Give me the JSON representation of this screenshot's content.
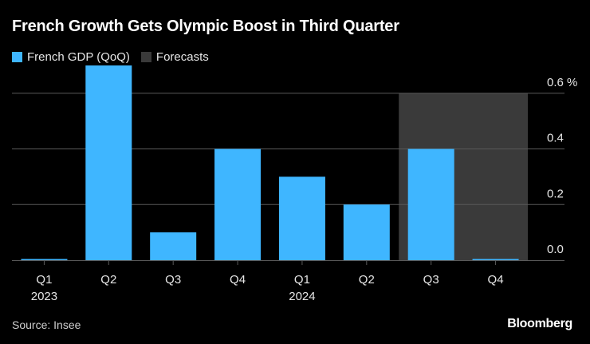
{
  "chart_data": {
    "type": "bar",
    "title": "French Growth Gets Olympic Boost in Third Quarter",
    "categories": [
      "Q1",
      "Q2",
      "Q3",
      "Q4",
      "Q1",
      "Q2",
      "Q3",
      "Q4"
    ],
    "year_labels": [
      "2023",
      "",
      "",
      "",
      "2024",
      "",
      "",
      ""
    ],
    "series": [
      {
        "name": "French GDP (QoQ)",
        "values": [
          0.0,
          0.7,
          0.1,
          0.4,
          0.3,
          0.2,
          0.4,
          0.0
        ]
      }
    ],
    "forecast_band": {
      "name": "Forecasts",
      "categories": [
        6,
        7
      ],
      "value": 0.6
    },
    "yticks": [
      {
        "value": 0.0,
        "label": "0.0"
      },
      {
        "value": 0.2,
        "label": "0.2"
      },
      {
        "value": 0.4,
        "label": "0.4"
      },
      {
        "value": 0.6,
        "label": "0.6 %"
      }
    ],
    "ylim": [
      0,
      0.7
    ],
    "colors": {
      "bar": "#3fb6ff",
      "forecast": "#3a3a3a",
      "grid": "#595959",
      "text": "#e6e6e6"
    }
  },
  "legend": {
    "items": [
      {
        "label": "French GDP (QoQ)",
        "color": "#3fb6ff"
      },
      {
        "label": "Forecasts",
        "color": "#3a3a3a"
      }
    ]
  },
  "footer": {
    "source": "Source: Insee",
    "brand": "Bloomberg"
  }
}
